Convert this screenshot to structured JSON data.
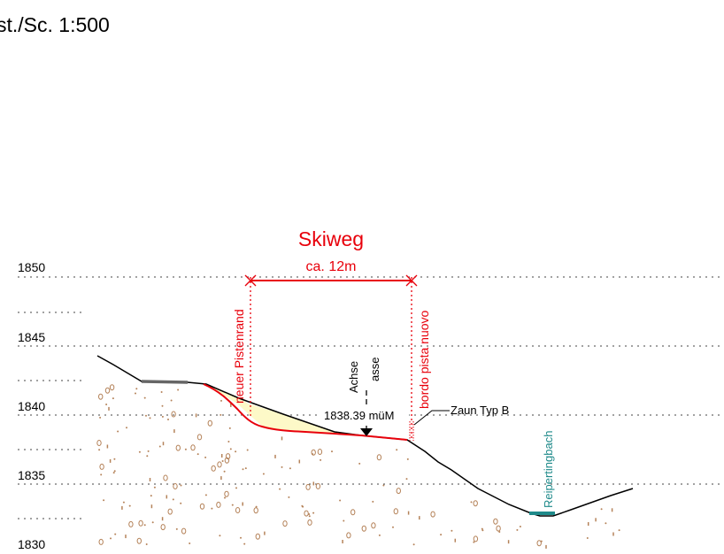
{
  "scale_label": "st./Sc. 1:500",
  "title": "Skiweg",
  "width_label": "ca. 12m",
  "elevation_labels": [
    "1850",
    "1845",
    "1840",
    "1835",
    "1830"
  ],
  "left_edge_label": "neuer Pistenrand",
  "right_edge_label": "bordo pista nuovo",
  "axis_label_de": "Achse",
  "axis_label_it": "asse",
  "axis_elevation": "1838.39 müM",
  "fence_label": "Zaun Typ B",
  "stream_label": "Reipertingbach",
  "colors": {
    "new_road": "#e8000b",
    "terrain": "#000000",
    "fill": "#fdf9c8",
    "soil": "#b5835a",
    "stream": "#1f8a8a",
    "grid": "#444444"
  }
}
